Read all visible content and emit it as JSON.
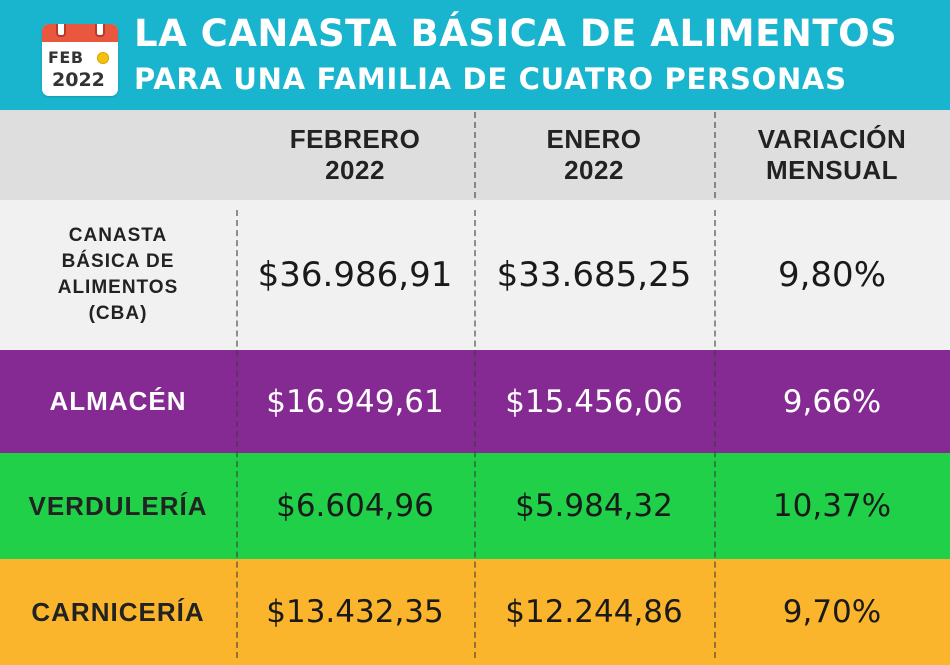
{
  "header": {
    "title_line1": "LA CANASTA BÁSICA DE ALIMENTOS",
    "title_line2": "PARA UNA FAMILIA DE CUATRO PERSONAS",
    "calendar_month": "FEB",
    "calendar_year": "2022"
  },
  "columns": [
    {
      "line1": "FEBRERO",
      "line2": "2022"
    },
    {
      "line1": "ENERO",
      "line2": "2022"
    },
    {
      "line1": "VARIACIÓN",
      "line2": "MENSUAL"
    }
  ],
  "rows": [
    {
      "label_lines": [
        "CANASTA",
        "BÁSICA DE",
        "ALIMENTOS",
        "(CBA)"
      ],
      "febrero": "$36.986,91",
      "enero": "$33.685,25",
      "variacion": "9,80%",
      "color": "#f1f1f1"
    },
    {
      "label": "ALMACÉN",
      "febrero": "$16.949,61",
      "enero": "$15.456,06",
      "variacion": "9,66%",
      "color": "#862a93"
    },
    {
      "label": "VERDULERÍA",
      "febrero": "$6.604,96",
      "enero": "$5.984,32",
      "variacion": "10,37%",
      "color": "#1fd048"
    },
    {
      "label": "CARNICERÍA",
      "febrero": "$13.432,35",
      "enero": "$12.244,86",
      "variacion": "9,70%",
      "color": "#fbb52c"
    }
  ],
  "colors": {
    "header_bg": "#19b4cd",
    "column_header_bg": "#dedede",
    "calendar_accent": "#e8573e"
  },
  "icons": [
    "calendar-icon"
  ]
}
